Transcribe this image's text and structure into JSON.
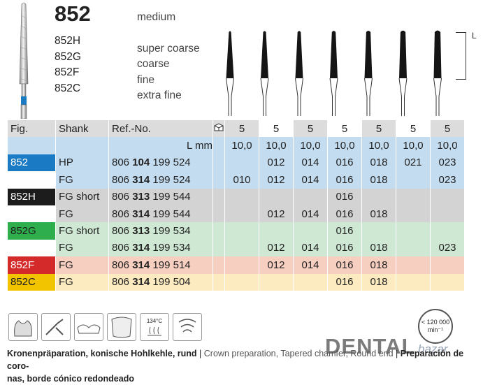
{
  "header": {
    "model": "852",
    "grit_main": "medium",
    "variants": [
      {
        "code": "852H",
        "grit": "super coarse"
      },
      {
        "code": "852G",
        "grit": "coarse"
      },
      {
        "code": "852F",
        "grit": "fine"
      },
      {
        "code": "852C",
        "grit": "extra fine"
      }
    ]
  },
  "diagram": {
    "length_letter": "L"
  },
  "table": {
    "headers": {
      "fig": "Fig.",
      "shank": "Shank",
      "ref": "Ref.-No."
    },
    "pack_counts": [
      "5",
      "5",
      "5",
      "5",
      "5",
      "5",
      "5"
    ],
    "length_label": "L mm",
    "lengths": [
      "10,0",
      "10,0",
      "10,0",
      "10,0",
      "10,0",
      "10,0",
      "10,0"
    ],
    "rows": [
      {
        "fig": "852",
        "fig_bg": "#1b7ac4",
        "fig_fg": "#ffffff",
        "bg": "#c3dcf0",
        "shank": "HP",
        "ref_a": "806",
        "ref_b": "104",
        "ref_c": "199 524",
        "sizes": [
          "",
          "012",
          "014",
          "016",
          "018",
          "021",
          "023"
        ]
      },
      {
        "fig": "",
        "fig_bg": "#ffffff",
        "fig_fg": "#ffffff",
        "bg": "#c3dcf0",
        "shank": "FG",
        "ref_a": "806",
        "ref_b": "314",
        "ref_c": "199 524",
        "sizes": [
          "010",
          "012",
          "014",
          "016",
          "018",
          "",
          "023"
        ]
      },
      {
        "fig": "852H",
        "fig_bg": "#1c1c1c",
        "fig_fg": "#ffffff",
        "bg": "#d3d3d3",
        "shank": "FG short",
        "ref_a": "806",
        "ref_b": "313",
        "ref_c": "199 544",
        "sizes": [
          "",
          "",
          "",
          "016",
          "",
          "",
          ""
        ]
      },
      {
        "fig": "",
        "fig_bg": "#ffffff",
        "fig_fg": "#ffffff",
        "bg": "#d3d3d3",
        "shank": "FG",
        "ref_a": "806",
        "ref_b": "314",
        "ref_c": "199 544",
        "sizes": [
          "",
          "012",
          "014",
          "016",
          "018",
          "",
          ""
        ]
      },
      {
        "fig": "852G",
        "fig_bg": "#2fae4e",
        "fig_fg": "#1c1c1c",
        "bg": "#cfe8d3",
        "shank": "FG short",
        "ref_a": "806",
        "ref_b": "313",
        "ref_c": "199 534",
        "sizes": [
          "",
          "",
          "",
          "016",
          "",
          "",
          ""
        ]
      },
      {
        "fig": "",
        "fig_bg": "#ffffff",
        "fig_fg": "#ffffff",
        "bg": "#cfe8d3",
        "shank": "FG",
        "ref_a": "806",
        "ref_b": "314",
        "ref_c": "199 534",
        "sizes": [
          "",
          "012",
          "014",
          "016",
          "018",
          "",
          "023"
        ]
      },
      {
        "fig": "852F",
        "fig_bg": "#d42a2a",
        "fig_fg": "#ffffff",
        "bg": "#f7cfc0",
        "shank": "FG",
        "ref_a": "806",
        "ref_b": "314",
        "ref_c": "199 514",
        "sizes": [
          "",
          "012",
          "014",
          "016",
          "018",
          "",
          ""
        ]
      },
      {
        "fig": "852C",
        "fig_bg": "#f2c400",
        "fig_fg": "#1c1c1c",
        "bg": "#fcebc0",
        "shank": "FG",
        "ref_a": "806",
        "ref_b": "314",
        "ref_c": "199 504",
        "sizes": [
          "",
          "",
          "",
          "016",
          "018",
          "",
          ""
        ]
      }
    ]
  },
  "icons": [
    "crown-prep-icon",
    "handpiece-icon",
    "tooth-bridge-icon",
    "veneer-icon",
    "sterilization-icon",
    "disinfection-icon"
  ],
  "sterilization_label": "134°C",
  "speed": {
    "max": "< 120 000",
    "unit": "min⁻¹"
  },
  "description": {
    "de": "Kronenpräparation, konische Hohlkehle, rund",
    "sep": " | ",
    "en": "Crown preparation, Tapered chamfer, Round end",
    "es_a": "Preparación de coro-",
    "es_b": "nas, borde cónico redondeado"
  },
  "brand": {
    "name": "DENTAL",
    "sub": "bazar"
  }
}
